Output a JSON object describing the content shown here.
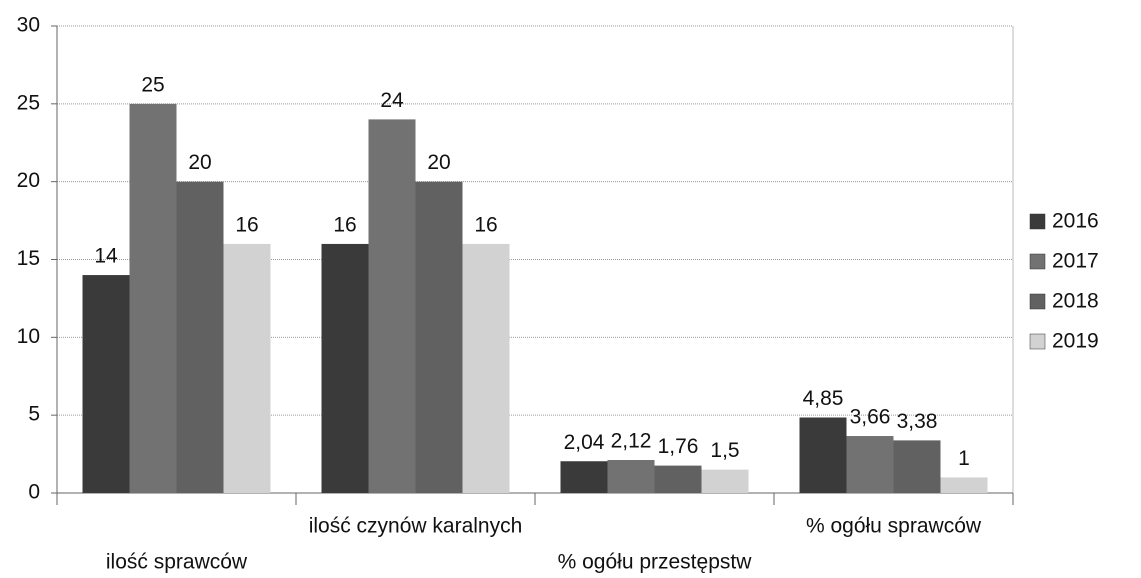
{
  "chart_data": {
    "type": "bar",
    "categories": [
      "ilość sprawców",
      "ilość czynów karalnych",
      "% ogółu przestępstw",
      "% ogółu sprawców"
    ],
    "series": [
      {
        "name": "2016",
        "color": "#3a3a3a",
        "values": [
          14,
          16,
          2.04,
          4.85
        ],
        "value_labels": [
          "14",
          "16",
          "2,04",
          "4,85"
        ]
      },
      {
        "name": "2017",
        "color": "#727272",
        "values": [
          25,
          24,
          2.12,
          3.66
        ],
        "value_labels": [
          "25",
          "24",
          "2,12",
          "3,66"
        ]
      },
      {
        "name": "2018",
        "color": "#616161",
        "values": [
          20,
          20,
          1.76,
          3.38
        ],
        "value_labels": [
          "20",
          "20",
          "1,76",
          "3,38"
        ]
      },
      {
        "name": "2019",
        "color": "#d2d2d2",
        "values": [
          16,
          16,
          1.5,
          1
        ],
        "value_labels": [
          "16",
          "16",
          "1,5",
          "1"
        ]
      }
    ],
    "ylim": [
      0,
      30
    ],
    "yticks": [
      0,
      5,
      10,
      15,
      20,
      25,
      30
    ],
    "grid": true,
    "legend": "right"
  }
}
